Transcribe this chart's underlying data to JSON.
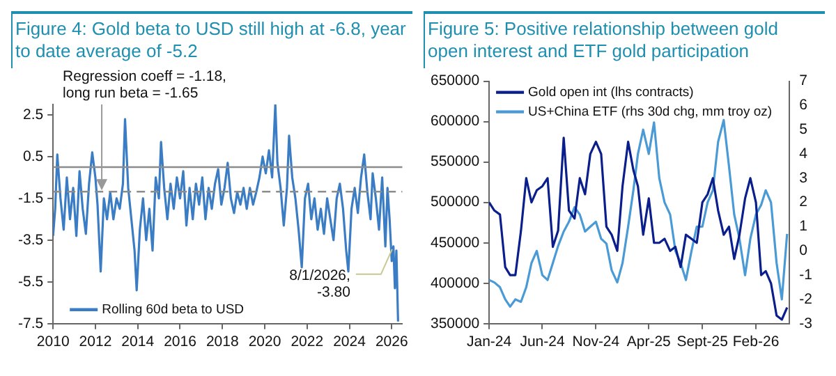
{
  "chart_data": [
    {
      "type": "line",
      "title": "Figure 4: Gold beta to USD still high at -6.8, year to date average of -5.2",
      "x": [
        2010.0,
        2010.1,
        2010.2,
        2010.35,
        2010.5,
        2010.65,
        2010.8,
        2010.95,
        2011.1,
        2011.25,
        2011.4,
        2011.55,
        2011.7,
        2011.85,
        2012.0,
        2012.1,
        2012.25,
        2012.4,
        2012.55,
        2012.7,
        2012.85,
        2013.0,
        2013.15,
        2013.3,
        2013.4,
        2013.55,
        2013.7,
        2013.85,
        2013.95,
        2014.1,
        2014.25,
        2014.4,
        2014.55,
        2014.7,
        2014.85,
        2015.0,
        2015.1,
        2015.25,
        2015.4,
        2015.55,
        2015.7,
        2015.85,
        2016.0,
        2016.15,
        2016.3,
        2016.45,
        2016.6,
        2016.75,
        2016.9,
        2017.05,
        2017.2,
        2017.35,
        2017.5,
        2017.65,
        2017.8,
        2017.95,
        2018.1,
        2018.25,
        2018.4,
        2018.55,
        2018.7,
        2018.85,
        2019.0,
        2019.15,
        2019.3,
        2019.45,
        2019.6,
        2019.75,
        2019.9,
        2020.05,
        2020.2,
        2020.35,
        2020.5,
        2020.6,
        2020.75,
        2020.9,
        2021.05,
        2021.15,
        2021.3,
        2021.45,
        2021.6,
        2021.75,
        2021.9,
        2022.05,
        2022.2,
        2022.35,
        2022.5,
        2022.65,
        2022.8,
        2022.95,
        2023.1,
        2023.25,
        2023.4,
        2023.55,
        2023.7,
        2023.85,
        2023.95,
        2024.1,
        2024.25,
        2024.4,
        2024.55,
        2024.7,
        2024.85,
        2025.0,
        2025.1,
        2025.25,
        2025.4,
        2025.55,
        2025.7,
        2025.8,
        2025.9,
        2026.0,
        2026.08,
        2026.15,
        2026.22,
        2026.3
      ],
      "series": [
        {
          "name": "Rolling 60d beta to USD",
          "color": "#3b7dc4",
          "values": [
            -3.3,
            -2.0,
            0.6,
            -1.5,
            -3.0,
            -0.5,
            -2.5,
            -1.0,
            -3.3,
            -0.2,
            -2.0,
            -3.2,
            -0.8,
            0.7,
            -0.5,
            -1.8,
            -5.0,
            -1.5,
            -2.5,
            -1.2,
            -2.5,
            -1.5,
            -2.0,
            -0.8,
            2.3,
            -1.0,
            -2.5,
            -4.0,
            -5.9,
            -3.0,
            -1.5,
            -3.5,
            -2.0,
            -4.0,
            -0.5,
            -1.5,
            1.2,
            -1.0,
            -2.5,
            -0.8,
            -2.0,
            -0.5,
            -1.5,
            -0.2,
            -2.8,
            -1.0,
            -2.5,
            -0.8,
            -1.8,
            -0.5,
            -2.5,
            -1.0,
            -2.0,
            -0.8,
            -0.1,
            -1.8,
            -1.0,
            0.2,
            -1.5,
            -2.2,
            -1.2,
            -1.8,
            -1.0,
            -2.0,
            -1.0,
            -1.8,
            -1.2,
            -0.5,
            0.5,
            -0.3,
            0.8,
            -0.5,
            3.0,
            0.2,
            -1.0,
            -2.8,
            -1.0,
            1.5,
            -0.5,
            -1.5,
            -3.0,
            -4.8,
            -1.5,
            -0.8,
            -2.5,
            -1.5,
            -3.0,
            -2.0,
            -3.2,
            -1.5,
            -2.5,
            -3.5,
            -1.5,
            -0.8,
            -2.0,
            -4.0,
            -5.0,
            -2.0,
            -1.0,
            -2.2,
            -0.5,
            0.6,
            -1.2,
            -2.5,
            -0.3,
            -1.5,
            -3.0,
            -0.5,
            -3.8,
            -1.0,
            -2.5,
            -4.5,
            -3.8,
            -5.8,
            -4.0,
            -7.4
          ]
        }
      ],
      "xlim": [
        2010,
        2026.5
      ],
      "xticks": [
        2010,
        2012,
        2014,
        2016,
        2018,
        2020,
        2022,
        2024,
        2026
      ],
      "ylim": [
        -7.5,
        3.0
      ],
      "yticks": [
        -7.5,
        -5.5,
        -3.5,
        -1.5,
        0.5,
        2.5
      ],
      "ref_lines": [
        {
          "axis": "y",
          "value": 0,
          "color": "#8c8c8c",
          "line_style": "solid"
        },
        {
          "axis": "y",
          "value": -1.18,
          "color": "#8c8c8c",
          "line_style": "dashed"
        }
      ],
      "annotations": [
        {
          "text": "Regression coeff = -1.18, long run beta = -1.65",
          "x": 2012.3,
          "y": -1.18
        },
        {
          "text": "8/1/2026, -3.80",
          "x": 2026.02,
          "y": -3.8
        }
      ],
      "legend": "bottom left",
      "marker": "none",
      "line_style": "solid"
    },
    {
      "type": "line",
      "title": "Figure 5: Positive relationship between gold open interest and ETF gold participation",
      "x": [
        "2024-01-01",
        "2024-01-16",
        "2024-02-01",
        "2024-02-16",
        "2024-03-01",
        "2024-03-16",
        "2024-04-01",
        "2024-04-16",
        "2024-05-01",
        "2024-05-16",
        "2024-06-01",
        "2024-06-16",
        "2024-07-01",
        "2024-07-16",
        "2024-08-01",
        "2024-08-16",
        "2024-09-01",
        "2024-09-16",
        "2024-10-01",
        "2024-10-16",
        "2024-11-01",
        "2024-11-16",
        "2024-12-01",
        "2024-12-16",
        "2025-01-01",
        "2025-01-16",
        "2025-02-01",
        "2025-02-16",
        "2025-03-01",
        "2025-03-16",
        "2025-04-01",
        "2025-04-16",
        "2025-05-01",
        "2025-05-16",
        "2025-06-01",
        "2025-06-16",
        "2025-07-01",
        "2025-07-16",
        "2025-08-01",
        "2025-08-16",
        "2025-09-01",
        "2025-09-16",
        "2025-10-01",
        "2025-10-16",
        "2025-11-01",
        "2025-11-16",
        "2025-12-01",
        "2025-12-16",
        "2026-01-01",
        "2026-01-16",
        "2026-02-01",
        "2026-02-16",
        "2026-03-01",
        "2026-03-16",
        "2026-04-01",
        "2026-04-16",
        "2026-05-01"
      ],
      "series": [
        {
          "name": "Gold open int (lhs contracts)",
          "color": "#0a1e8c",
          "values": [
            500000,
            490000,
            485000,
            420000,
            410000,
            410000,
            465000,
            530000,
            500000,
            515000,
            520000,
            530000,
            445000,
            465000,
            580000,
            490000,
            480000,
            530000,
            510000,
            560000,
            575000,
            560000,
            470000,
            460000,
            440000,
            520000,
            575000,
            540000,
            520000,
            460000,
            505000,
            450000,
            450000,
            455000,
            440000,
            445000,
            420000,
            460000,
            455000,
            450000,
            500000,
            510000,
            530000,
            490000,
            460000,
            470000,
            430000,
            460000,
            505000,
            530000,
            500000,
            410000,
            415000,
            400000,
            360000,
            355000,
            370000
          ]
        },
        {
          "name": "US+China ETF (rhs 30d chg, mm troy oz)",
          "color": "#4a9ad6",
          "axis": "y2",
          "values": [
            -1.2,
            -1.3,
            -1.5,
            -2.0,
            -2.3,
            -2.0,
            -2.1,
            -1.5,
            -0.5,
            0.0,
            -1.0,
            -1.2,
            -0.5,
            0.2,
            0.8,
            1.2,
            1.8,
            1.5,
            0.8,
            1.0,
            1.2,
            0.5,
            0.3,
            -0.8,
            -1.3,
            -0.5,
            1.0,
            2.5,
            4.0,
            5.0,
            4.0,
            5.3,
            3.0,
            2.0,
            1.5,
            0.0,
            -0.5,
            -1.2,
            0.0,
            1.0,
            1.0,
            2.0,
            2.5,
            4.5,
            5.4,
            3.5,
            1.5,
            0.5,
            -1.0,
            0.5,
            1.5,
            1.9,
            2.5,
            2.0,
            -0.5,
            -2.0,
            0.7
          ]
        }
      ],
      "xlim": [
        "2024-01-01",
        "2026-05-08"
      ],
      "xticks": [
        {
          "value": "2024-01-01",
          "label": "Jan-24"
        },
        {
          "value": "2024-06-01",
          "label": "Jun-24"
        },
        {
          "value": "2024-11-01",
          "label": "Nov-24"
        },
        {
          "value": "2025-04-01",
          "label": "Apr-25"
        },
        {
          "value": "2025-09-01",
          "label": "Sept-25"
        },
        {
          "value": "2026-02-01",
          "label": "Feb-26"
        }
      ],
      "ylim": [
        350000,
        650000
      ],
      "yticks": [
        350000,
        400000,
        450000,
        500000,
        550000,
        600000,
        650000
      ],
      "y2lim": [
        -3,
        7
      ],
      "y2ticks": [
        -3,
        -2,
        -1,
        0,
        1,
        2,
        3,
        4,
        5,
        6,
        7
      ],
      "legend": "top left",
      "marker": "none",
      "line_style": "solid"
    }
  ]
}
